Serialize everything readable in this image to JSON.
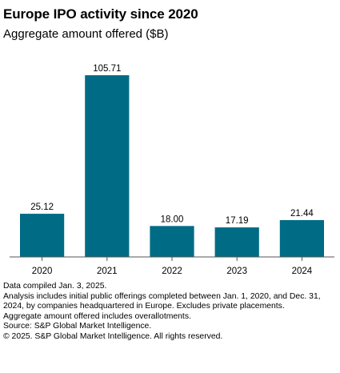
{
  "title": "Europe IPO activity since 2020",
  "subtitle": "Aggregate amount offered ($B)",
  "chart_data": {
    "type": "bar",
    "title": "Europe IPO activity since 2020",
    "subtitle": "Aggregate amount offered ($B)",
    "categories": [
      "2020",
      "2021",
      "2022",
      "2023",
      "2024"
    ],
    "values": [
      25.12,
      105.71,
      18.0,
      17.19,
      21.44
    ],
    "value_labels": [
      "25.12",
      "105.71",
      "18.00",
      "17.19",
      "21.44"
    ],
    "xlabel": "",
    "ylabel": "",
    "ylim": [
      0,
      105.71
    ],
    "grid": false,
    "bar_color": "#006b85",
    "data_labels": true
  },
  "notes": [
    "Data compiled Jan. 3, 2025.",
    "Analysis includes initial public offerings completed between Jan. 1, 2020, and Dec. 31, 2024, by companies headquartered in Europe. Excludes private placements.",
    "Aggregate amount offered includes overallotments.",
    "Source: S&P Global Market Intelligence.",
    "© 2025. S&P Global Market Intelligence. All rights reserved."
  ]
}
